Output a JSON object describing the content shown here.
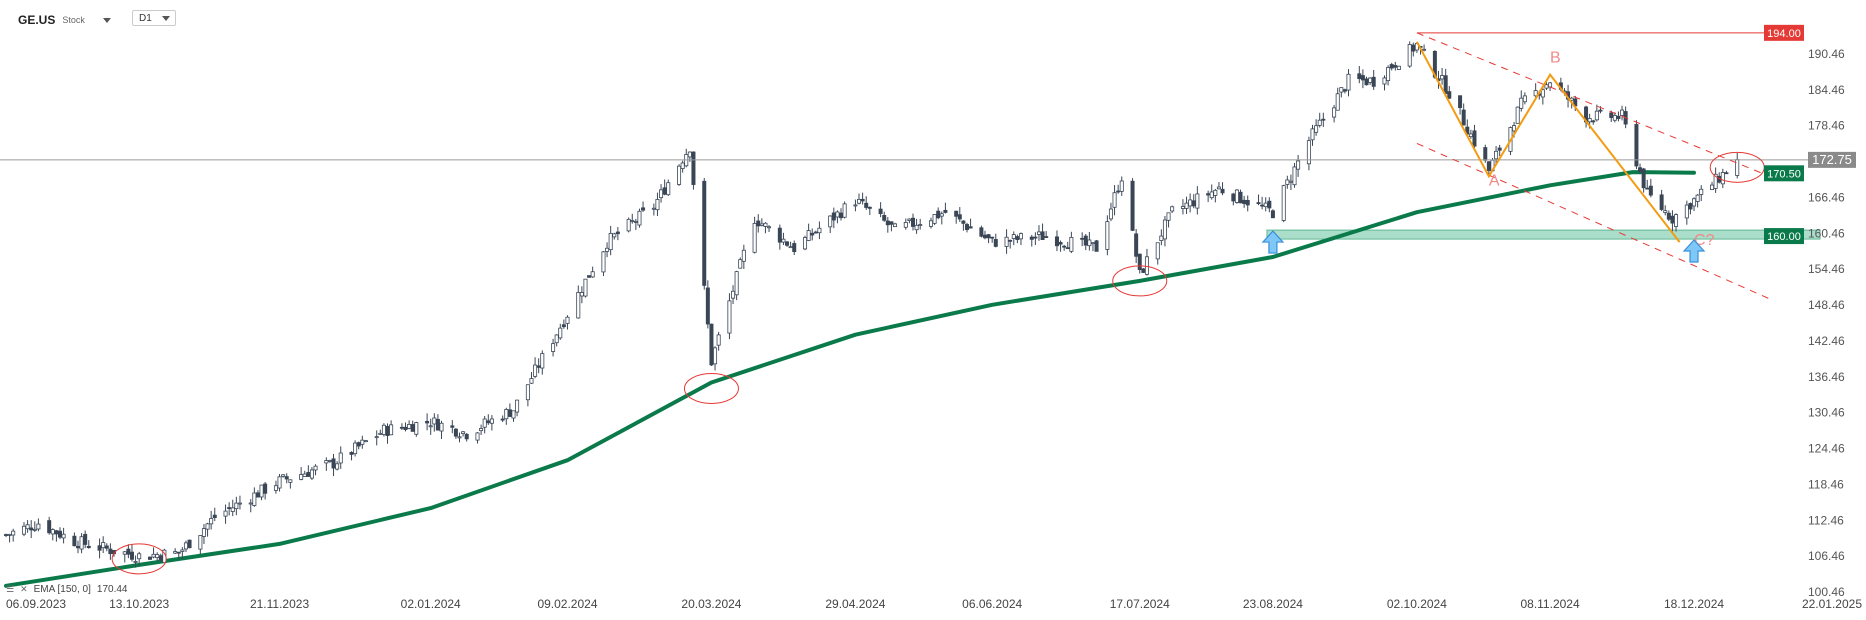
{
  "toolbar": {
    "symbol": "GE.US",
    "symbol_type": "Stock",
    "timeframe": "D1"
  },
  "ema_legend": {
    "icons": [
      "eye-icon",
      "close-icon"
    ],
    "label": "EMA [150, 0]",
    "value": "170.44"
  },
  "chart_data": {
    "type": "candlestick",
    "title": "",
    "xlabel": "",
    "ylabel": "",
    "ylim": [
      100.46,
      196.46
    ],
    "x_ticks": [
      "06.09.2023",
      "13.10.2023",
      "21.11.2023",
      "02.01.2024",
      "09.02.2024",
      "20.03.2024",
      "29.04.2024",
      "06.06.2024",
      "17.07.2024",
      "23.08.2024",
      "02.10.2024",
      "08.11.2024",
      "18.12.2024",
      "22.01.2025"
    ],
    "y_ticks": [
      "190.46",
      "184.46",
      "178.46",
      "172.46",
      "166.46",
      "160.46",
      "154.46",
      "148.46",
      "142.46",
      "136.46",
      "130.46",
      "124.46",
      "118.46",
      "112.46",
      "106.46",
      "100.46"
    ],
    "grid": false,
    "price_levels": [
      {
        "label": "194.00",
        "value": 194.0,
        "color": "#e53935"
      },
      {
        "label": "172.75",
        "value": 172.75,
        "color": "#8a8a8a"
      },
      {
        "label": "170.50",
        "value": 170.5,
        "color": "#0b7a4b"
      },
      {
        "label": "160.00",
        "value": 160.0,
        "color": "#0b7a4b"
      }
    ],
    "ema_series": {
      "label": "EMA [150, 0]",
      "color": "#0b7a4b",
      "points": [
        [
          "06.09.2023",
          101.5
        ],
        [
          "13.10.2023",
          105.0
        ],
        [
          "21.11.2023",
          108.5
        ],
        [
          "02.01.2024",
          114.5
        ],
        [
          "09.02.2024",
          122.5
        ],
        [
          "20.03.2024",
          135.5
        ],
        [
          "29.04.2024",
          143.5
        ],
        [
          "06.06.2024",
          148.5
        ],
        [
          "17.07.2024",
          152.5
        ],
        [
          "23.08.2024",
          156.5
        ],
        [
          "02.10.2024",
          164.0
        ],
        [
          "08.11.2024",
          168.5
        ],
        [
          "01.12.2024",
          170.7
        ],
        [
          "18.12.2024",
          170.6
        ]
      ]
    },
    "support_zone": {
      "from": "23.08.2024",
      "to": "22.01.2025",
      "low": 159.5,
      "high": 161.0,
      "label": "160.00"
    },
    "channel_lines": [
      {
        "from": [
          "02.10.2024",
          194.0
        ],
        "to": [
          "08.01.2025",
          170.0
        ],
        "style": "dashed",
        "color": "#e53935"
      },
      {
        "from": [
          "02.10.2024",
          175.5
        ],
        "to": [
          "08.01.2025",
          149.5
        ],
        "style": "dashed",
        "color": "#e53935"
      }
    ],
    "resistance_line": {
      "from": "02.10.2024",
      "to": "22.01.2025",
      "value": 194.0,
      "color": "#e53935"
    },
    "abc_wave": {
      "color": "#f39c12",
      "points": [
        [
          "02.10.2024",
          192.5
        ],
        [
          "22.10.2024",
          170.0
        ],
        [
          "08.11.2024",
          187.0
        ],
        [
          "14.12.2024",
          159.0
        ]
      ]
    },
    "wave_labels": [
      {
        "text": "A",
        "at": [
          "22.10.2024",
          168.5
        ]
      },
      {
        "text": "B",
        "at": [
          "08.11.2024",
          189.0
        ]
      },
      {
        "text": "C?",
        "at": [
          "18.12.2024",
          158.5
        ]
      }
    ],
    "highlight_circles": [
      {
        "at": [
          "13.10.2023",
          106.0
        ]
      },
      {
        "at": [
          "20.03.2024",
          134.5
        ]
      },
      {
        "at": [
          "17.07.2024",
          152.5
        ]
      },
      {
        "at": [
          "30.12.2024",
          171.5
        ]
      }
    ],
    "up_arrows": [
      {
        "at": [
          "23.08.2024",
          159.0
        ]
      },
      {
        "at": [
          "18.12.2024",
          157.5
        ]
      }
    ],
    "anchors": [
      [
        "06.09.2023",
        110
      ],
      [
        "15.09.2023",
        112
      ],
      [
        "25.09.2023",
        109
      ],
      [
        "05.10.2023",
        107.5
      ],
      [
        "13.10.2023",
        106.5
      ],
      [
        "24.10.2023",
        107
      ],
      [
        "03.11.2023",
        113
      ],
      [
        "21.11.2023",
        119
      ],
      [
        "06.12.2023",
        122
      ],
      [
        "20.12.2023",
        127.5
      ],
      [
        "02.01.2024",
        129
      ],
      [
        "12.01.2024",
        127
      ],
      [
        "25.01.2024",
        131
      ],
      [
        "09.02.2024",
        147
      ],
      [
        "20.02.2024",
        159
      ],
      [
        "04.03.2024",
        165
      ],
      [
        "14.03.2024",
        175
      ],
      [
        "20.03.2024",
        139
      ],
      [
        "01.04.2024",
        163
      ],
      [
        "12.04.2024",
        158
      ],
      [
        "29.04.2024",
        166
      ],
      [
        "10.05.2024",
        161
      ],
      [
        "24.05.2024",
        164
      ],
      [
        "06.06.2024",
        159
      ],
      [
        "20.06.2024",
        160
      ],
      [
        "05.07.2024",
        158
      ],
      [
        "12.07.2024",
        170
      ],
      [
        "17.07.2024",
        153.5
      ],
      [
        "26.07.2024",
        164
      ],
      [
        "08.08.2024",
        168
      ],
      [
        "23.08.2024",
        164
      ],
      [
        "02.09.2024",
        176
      ],
      [
        "13.09.2024",
        186
      ],
      [
        "20.09.2024",
        186
      ],
      [
        "02.10.2024",
        192
      ],
      [
        "11.10.2024",
        184
      ],
      [
        "22.10.2024",
        171
      ],
      [
        "31.10.2024",
        182
      ],
      [
        "08.11.2024",
        186
      ],
      [
        "18.11.2024",
        180
      ],
      [
        "28.11.2024",
        180
      ],
      [
        "05.12.2024",
        167
      ],
      [
        "12.12.2024",
        163
      ],
      [
        "18.12.2024",
        166
      ],
      [
        "30.12.2024",
        172.5
      ]
    ]
  }
}
